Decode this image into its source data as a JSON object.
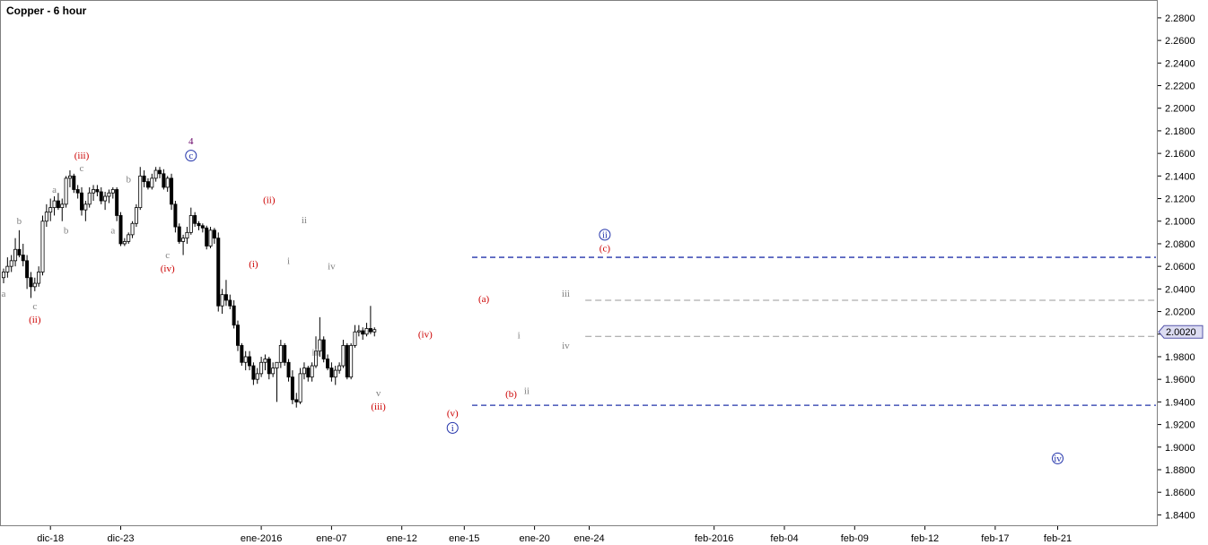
{
  "chart_data": {
    "type": "candlestick",
    "title": "Copper - 6 hour",
    "ylim": [
      1.83,
      2.295
    ],
    "y_ticks": [
      "2.2800",
      "2.2600",
      "2.2400",
      "2.2200",
      "2.2000",
      "2.1800",
      "2.1600",
      "2.1400",
      "2.1200",
      "2.1000",
      "2.0800",
      "2.0600",
      "2.0400",
      "2.0200",
      "2.0000",
      "1.9800",
      "1.9600",
      "1.9400",
      "1.9200",
      "1.9000",
      "1.8800",
      "1.8600",
      "1.8400"
    ],
    "x_labels": [
      "dic-18",
      "dic-23",
      "ene-2016",
      "ene-07",
      "ene-12",
      "ene-15",
      "ene-20",
      "ene-24",
      "feb-2016",
      "feb-04",
      "feb-09",
      "feb-12",
      "feb-17",
      "feb-21"
    ],
    "x_label_index": [
      12,
      30,
      66,
      84,
      102,
      118,
      136,
      150,
      182,
      200,
      218,
      236,
      254,
      270
    ],
    "last_price": "2.0020",
    "grid": false,
    "ohlc": [
      [
        2.05,
        2.058,
        2.045,
        2.055
      ],
      [
        2.055,
        2.068,
        2.05,
        2.06
      ],
      [
        2.06,
        2.07,
        2.055,
        2.065
      ],
      [
        2.065,
        2.085,
        2.06,
        2.075
      ],
      [
        2.075,
        2.092,
        2.068,
        2.07
      ],
      [
        2.07,
        2.08,
        2.06,
        2.065
      ],
      [
        2.065,
        2.07,
        2.04,
        2.05
      ],
      [
        2.05,
        2.055,
        2.032,
        2.042
      ],
      [
        2.042,
        2.05,
        2.038,
        2.045
      ],
      [
        2.045,
        2.06,
        2.042,
        2.055
      ],
      [
        2.055,
        2.105,
        2.052,
        2.1
      ],
      [
        2.1,
        2.115,
        2.095,
        2.108
      ],
      [
        2.108,
        2.12,
        2.1,
        2.112
      ],
      [
        2.112,
        2.122,
        2.105,
        2.118
      ],
      [
        2.118,
        2.125,
        2.11,
        2.112
      ],
      [
        2.112,
        2.12,
        2.1,
        2.115
      ],
      [
        2.115,
        2.14,
        2.112,
        2.138
      ],
      [
        2.138,
        2.145,
        2.13,
        2.14
      ],
      [
        2.14,
        2.142,
        2.125,
        2.128
      ],
      [
        2.128,
        2.132,
        2.12,
        2.125
      ],
      [
        2.125,
        2.13,
        2.105,
        2.11
      ],
      [
        2.11,
        2.118,
        2.1,
        2.115
      ],
      [
        2.115,
        2.13,
        2.112,
        2.125
      ],
      [
        2.125,
        2.132,
        2.118,
        2.128
      ],
      [
        2.128,
        2.132,
        2.122,
        2.126
      ],
      [
        2.126,
        2.13,
        2.115,
        2.118
      ],
      [
        2.118,
        2.126,
        2.11,
        2.122
      ],
      [
        2.122,
        2.128,
        2.116,
        2.125
      ],
      [
        2.125,
        2.13,
        2.12,
        2.128
      ],
      [
        2.128,
        2.13,
        2.1,
        2.105
      ],
      [
        2.105,
        2.108,
        2.078,
        2.08
      ],
      [
        2.08,
        2.085,
        2.078,
        2.082
      ],
      [
        2.082,
        2.09,
        2.08,
        2.088
      ],
      [
        2.088,
        2.1,
        2.085,
        2.098
      ],
      [
        2.098,
        2.115,
        2.095,
        2.112
      ],
      [
        2.112,
        2.148,
        2.11,
        2.14
      ],
      [
        2.14,
        2.145,
        2.13,
        2.135
      ],
      [
        2.135,
        2.138,
        2.128,
        2.13
      ],
      [
        2.13,
        2.142,
        2.128,
        2.138
      ],
      [
        2.138,
        2.148,
        2.135,
        2.145
      ],
      [
        2.145,
        2.148,
        2.138,
        2.142
      ],
      [
        2.142,
        2.146,
        2.128,
        2.13
      ],
      [
        2.13,
        2.14,
        2.126,
        2.138
      ],
      [
        2.138,
        2.142,
        2.11,
        2.115
      ],
      [
        2.115,
        2.118,
        2.09,
        2.095
      ],
      [
        2.095,
        2.098,
        2.08,
        2.082
      ],
      [
        2.082,
        2.088,
        2.07,
        2.085
      ],
      [
        2.085,
        2.095,
        2.08,
        2.09
      ],
      [
        2.09,
        2.112,
        2.088,
        2.105
      ],
      [
        2.105,
        2.108,
        2.095,
        2.098
      ],
      [
        2.098,
        2.1,
        2.092,
        2.096
      ],
      [
        2.096,
        2.098,
        2.09,
        2.094
      ],
      [
        2.094,
        2.096,
        2.075,
        2.078
      ],
      [
        2.078,
        2.095,
        2.076,
        2.092
      ],
      [
        2.092,
        2.094,
        2.08,
        2.085
      ],
      [
        2.085,
        2.09,
        2.02,
        2.025
      ],
      [
        2.025,
        2.04,
        2.018,
        2.035
      ],
      [
        2.035,
        2.048,
        2.025,
        2.03
      ],
      [
        2.03,
        2.035,
        2.022,
        2.025
      ],
      [
        2.025,
        2.03,
        2.005,
        2.008
      ],
      [
        2.008,
        2.012,
        1.985,
        1.99
      ],
      [
        1.99,
        1.992,
        1.972,
        1.975
      ],
      [
        1.975,
        1.985,
        1.968,
        1.98
      ],
      [
        1.98,
        1.985,
        1.968,
        1.972
      ],
      [
        1.972,
        1.975,
        1.955,
        1.96
      ],
      [
        1.96,
        1.97,
        1.956,
        1.965
      ],
      [
        1.965,
        1.98,
        1.962,
        1.975
      ],
      [
        1.975,
        1.982,
        1.968,
        1.978
      ],
      [
        1.978,
        1.98,
        1.96,
        1.965
      ],
      [
        1.965,
        1.975,
        1.962,
        1.97
      ],
      [
        1.97,
        1.975,
        1.94,
        1.975
      ],
      [
        1.975,
        1.995,
        1.97,
        1.99
      ],
      [
        1.99,
        1.992,
        1.972,
        1.975
      ],
      [
        1.975,
        1.978,
        1.958,
        1.962
      ],
      [
        1.962,
        1.968,
        1.938,
        1.942
      ],
      [
        1.942,
        1.948,
        1.935,
        1.94
      ],
      [
        1.94,
        1.97,
        1.938,
        1.965
      ],
      [
        1.965,
        1.975,
        1.96,
        1.97
      ],
      [
        1.97,
        1.972,
        1.958,
        1.962
      ],
      [
        1.962,
        1.975,
        1.958,
        1.972
      ],
      [
        1.972,
        1.998,
        1.97,
        1.985
      ],
      [
        1.985,
        2.015,
        1.98,
        1.995
      ],
      [
        1.995,
        1.998,
        1.975,
        1.978
      ],
      [
        1.978,
        1.982,
        1.968,
        1.97
      ],
      [
        1.97,
        1.975,
        1.958,
        1.962
      ],
      [
        1.962,
        1.972,
        1.955,
        1.968
      ],
      [
        1.968,
        1.975,
        1.965,
        1.972
      ],
      [
        1.972,
        1.995,
        1.97,
        1.99
      ],
      [
        1.99,
        1.992,
        1.96,
        1.962
      ],
      [
        1.962,
        1.992,
        1.96,
        1.99
      ],
      [
        1.99,
        2.008,
        1.988,
        2.002
      ],
      [
        2.002,
        2.008,
        1.998,
        2.003
      ],
      [
        2.003,
        2.006,
        1.995,
        2.0
      ],
      [
        2.0,
        2.01,
        1.998,
        2.005
      ],
      [
        2.005,
        2.025,
        2.0,
        2.002
      ],
      [
        2.002,
        2.006,
        1.998,
        2.004
      ]
    ],
    "levels": [
      {
        "value": 2.068,
        "style": "blue-dash",
        "from_index": 120
      },
      {
        "value": 1.937,
        "style": "blue-dash",
        "from_index": 120
      },
      {
        "value": 2.03,
        "style": "gray-dash",
        "from_index": 149
      },
      {
        "value": 1.998,
        "style": "gray-dash",
        "from_index": 149
      }
    ],
    "annotations": [
      {
        "text": "a",
        "i": 0,
        "y": 2.036,
        "color": "#808080",
        "circled": false
      },
      {
        "text": "b",
        "i": 4,
        "y": 2.1,
        "color": "#808080",
        "circled": false
      },
      {
        "text": "c",
        "i": 8,
        "y": 2.025,
        "color": "#808080",
        "circled": false
      },
      {
        "text": "(ii)",
        "i": 8,
        "y": 2.013,
        "color": "#cc0000",
        "circled": false
      },
      {
        "text": "a",
        "i": 13,
        "y": 2.128,
        "color": "#808080",
        "circled": false
      },
      {
        "text": "b",
        "i": 16,
        "y": 2.092,
        "color": "#808080",
        "circled": false
      },
      {
        "text": "c",
        "i": 20,
        "y": 2.147,
        "color": "#808080",
        "circled": false
      },
      {
        "text": "(iii)",
        "i": 20,
        "y": 2.158,
        "color": "#cc0000",
        "circled": false
      },
      {
        "text": "a",
        "i": 28,
        "y": 2.092,
        "color": "#808080",
        "circled": false
      },
      {
        "text": "b",
        "i": 32,
        "y": 2.137,
        "color": "#808080",
        "circled": false
      },
      {
        "text": "c",
        "i": 42,
        "y": 2.07,
        "color": "#808080",
        "circled": false
      },
      {
        "text": "(iv)",
        "i": 42,
        "y": 2.058,
        "color": "#cc0000",
        "circled": false
      },
      {
        "text": "4",
        "i": 48,
        "y": 2.171,
        "color": "#660066",
        "circled": false
      },
      {
        "text": "c",
        "i": 48,
        "y": 2.158,
        "color": "#2233aa",
        "circled": true
      },
      {
        "text": "(i)",
        "i": 64,
        "y": 2.062,
        "color": "#cc0000",
        "circled": false
      },
      {
        "text": "(ii)",
        "i": 68,
        "y": 2.119,
        "color": "#cc0000",
        "circled": false
      },
      {
        "text": "i",
        "i": 73,
        "y": 2.065,
        "color": "#808080",
        "circled": false
      },
      {
        "text": "ii",
        "i": 77,
        "y": 2.101,
        "color": "#808080",
        "circled": false
      },
      {
        "text": "iii",
        "i": 80,
        "y": 1.984,
        "color": "#808080",
        "circled": false
      },
      {
        "text": "iv",
        "i": 84,
        "y": 2.06,
        "color": "#808080",
        "circled": false
      },
      {
        "text": "v",
        "i": 96,
        "y": 1.948,
        "color": "#808080",
        "circled": false
      },
      {
        "text": "(iii)",
        "i": 96,
        "y": 1.936,
        "color": "#cc0000",
        "circled": false
      },
      {
        "text": "(iv)",
        "i": 108,
        "y": 2.0,
        "color": "#cc0000",
        "circled": false
      },
      {
        "text": "(v)",
        "i": 115,
        "y": 1.93,
        "color": "#cc0000",
        "circled": false
      },
      {
        "text": "i",
        "i": 115,
        "y": 1.917,
        "color": "#2233aa",
        "circled": true
      },
      {
        "text": "(a)",
        "i": 123,
        "y": 2.031,
        "color": "#cc0000",
        "circled": false
      },
      {
        "text": "i",
        "i": 132,
        "y": 1.999,
        "color": "#808080",
        "circled": false
      },
      {
        "text": "(b)",
        "i": 130,
        "y": 1.947,
        "color": "#cc0000",
        "circled": false
      },
      {
        "text": "ii",
        "i": 134,
        "y": 1.95,
        "color": "#808080",
        "circled": false
      },
      {
        "text": "iii",
        "i": 144,
        "y": 2.036,
        "color": "#808080",
        "circled": false
      },
      {
        "text": "iv",
        "i": 144,
        "y": 1.99,
        "color": "#808080",
        "circled": false
      },
      {
        "text": "ii",
        "i": 154,
        "y": 2.088,
        "color": "#2233aa",
        "circled": true
      },
      {
        "text": "(c)",
        "i": 154,
        "y": 2.076,
        "color": "#cc0000",
        "circled": false
      },
      {
        "text": "iv",
        "i": 270,
        "y": 1.89,
        "color": "#2233aa",
        "circled": true
      }
    ]
  }
}
